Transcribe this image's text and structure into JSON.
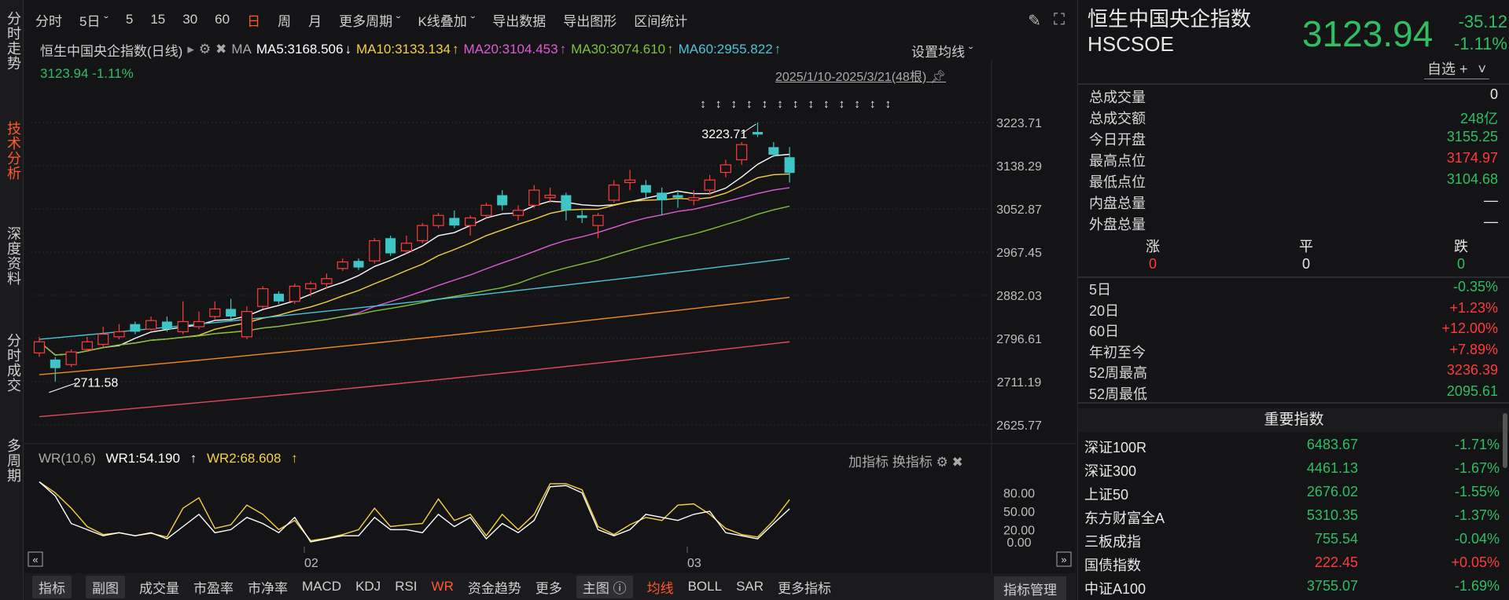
{
  "leftnav": [
    {
      "label": "分时走势",
      "active": false
    },
    {
      "label": "技术分析",
      "active": true
    },
    {
      "label": "深度资料",
      "active": false
    },
    {
      "label": "分时成交",
      "active": false
    },
    {
      "label": "多周期",
      "active": false
    }
  ],
  "toolbar": {
    "items": [
      "分时",
      "5日 ˇ",
      "5",
      "15",
      "30",
      "60",
      "日",
      "周",
      "月",
      "更多周期 ˇ",
      "K线叠加 ˇ",
      "导出数据",
      "导出图形",
      "区间统计"
    ],
    "active_index": 6
  },
  "chart": {
    "name": "恒生中国央企指数(日线)",
    "ma_label": "MA",
    "ma": [
      {
        "text": "MA5:3168.506",
        "arrow": "↓",
        "color": "#ffffff"
      },
      {
        "text": "MA10:3133.134",
        "arrow": "↑",
        "color": "#f5d142"
      },
      {
        "text": "MA20:3104.453",
        "arrow": "↑",
        "color": "#e05ad8"
      },
      {
        "text": "MA30:3074.610",
        "arrow": "↑",
        "color": "#7fc23a"
      },
      {
        "text": "MA60:2955.822",
        "arrow": "↑",
        "color": "#4cc4d8"
      }
    ],
    "set_ma": "设置均线 ˇ",
    "price_line": "3123.94  -1.11%",
    "date_range": "2025/1/10-2025/3/21(48根)",
    "y_ticks": [
      "3223.71",
      "3138.29",
      "3052.87",
      "2967.45",
      "2882.03",
      "2796.61",
      "2711.19",
      "2625.77"
    ],
    "high_label": "3223.71",
    "low_label": "2711.58",
    "x_ticks": [
      "02",
      "03"
    ]
  },
  "wr": {
    "title": "WR(10,6)",
    "wr1": "WR1:54.190",
    "wr1_arrow": "↑",
    "wr2": "WR2:68.608",
    "wr2_arrow": "↑",
    "add_indicator": "加指标",
    "change_indicator": "换指标",
    "y_ticks": [
      "80.00",
      "50.00",
      "20.00",
      "0.00"
    ]
  },
  "bottombar": {
    "items": [
      "指标",
      "副图",
      "成交量",
      "市盈率",
      "市净率",
      "MACD",
      "KDJ",
      "RSI",
      "WR",
      "资金趋势",
      "更多",
      "主图 ⓘ",
      "均线",
      "BOLL",
      "SAR",
      "更多指标"
    ],
    "manage": "指标管理"
  },
  "quote": {
    "name": "恒生中国央企指数",
    "code": "HSCSOE",
    "price": "3123.94",
    "change": "-35.12",
    "change_pct": "-1.11%",
    "fav": "自选 +",
    "stats": [
      {
        "k": "总成交量",
        "v": "0",
        "c": "white"
      },
      {
        "k": "总成交额",
        "v": "248亿",
        "c": "green"
      },
      {
        "k": "今日开盘",
        "v": "3155.25",
        "c": "green"
      },
      {
        "k": "最高点位",
        "v": "3174.97",
        "c": "red"
      },
      {
        "k": "最低点位",
        "v": "3104.68",
        "c": "green"
      },
      {
        "k": "内盘总量",
        "v": "—",
        "c": "white"
      },
      {
        "k": "外盘总量",
        "v": "—",
        "c": "white"
      }
    ],
    "breadth_labels": [
      "涨",
      "平",
      "跌"
    ],
    "breadth_values": [
      "0",
      "0",
      "0"
    ],
    "perf": [
      {
        "k": "5日",
        "v": "-0.35%",
        "c": "green"
      },
      {
        "k": "20日",
        "v": "+1.23%",
        "c": "red"
      },
      {
        "k": "60日",
        "v": "+12.00%",
        "c": "red"
      },
      {
        "k": "年初至今",
        "v": "+7.89%",
        "c": "red"
      },
      {
        "k": "52周最高",
        "v": "3236.39",
        "c": "red"
      },
      {
        "k": "52周最低",
        "v": "2095.61",
        "c": "green"
      }
    ],
    "important_title": "重要指数",
    "indices": [
      {
        "n": "深证100R",
        "p": "6483.67",
        "c": "-1.71%",
        "color": "green"
      },
      {
        "n": "深证300",
        "p": "4461.13",
        "c": "-1.67%",
        "color": "green"
      },
      {
        "n": "上证50",
        "p": "2676.02",
        "c": "-1.55%",
        "color": "green"
      },
      {
        "n": "东方财富全A",
        "p": "5310.35",
        "c": "-1.37%",
        "color": "green"
      },
      {
        "n": "三板成指",
        "p": "755.54",
        "c": "-0.04%",
        "color": "green"
      },
      {
        "n": "国债指数",
        "p": "222.45",
        "c": "+0.05%",
        "color": "red"
      },
      {
        "n": "中证A100",
        "p": "3755.07",
        "c": "-1.69%",
        "color": "green"
      }
    ]
  },
  "chart_data": {
    "type": "candlestick",
    "ylim": [
      2625.77,
      3240
    ],
    "candles": [
      [
        2768,
        2790,
        2800,
        2760
      ],
      [
        2755,
        2738,
        2760,
        2711.58
      ],
      [
        2745,
        2770,
        2775,
        2740
      ],
      [
        2775,
        2790,
        2800,
        2770
      ],
      [
        2785,
        2805,
        2820,
        2780
      ],
      [
        2800,
        2810,
        2825,
        2795
      ],
      [
        2825,
        2810,
        2830,
        2805
      ],
      [
        2815,
        2832,
        2840,
        2812
      ],
      [
        2830,
        2815,
        2840,
        2810
      ],
      [
        2810,
        2830,
        2870,
        2805
      ],
      [
        2820,
        2830,
        2850,
        2815
      ],
      [
        2840,
        2855,
        2870,
        2835
      ],
      [
        2855,
        2840,
        2875,
        2835
      ],
      [
        2800,
        2850,
        2860,
        2795
      ],
      [
        2860,
        2895,
        2900,
        2855
      ],
      [
        2885,
        2870,
        2890,
        2865
      ],
      [
        2870,
        2900,
        2905,
        2865
      ],
      [
        2895,
        2905,
        2910,
        2880
      ],
      [
        2905,
        2915,
        2925,
        2895
      ],
      [
        2935,
        2948,
        2955,
        2930
      ],
      [
        2950,
        2937,
        2955,
        2932
      ],
      [
        2950,
        2990,
        2995,
        2945
      ],
      [
        2995,
        2965,
        3000,
        2960
      ],
      [
        2970,
        2985,
        3000,
        2965
      ],
      [
        2990,
        3020,
        3025,
        2985
      ],
      [
        3020,
        3040,
        3045,
        3015
      ],
      [
        3035,
        3020,
        3050,
        3015
      ],
      [
        3020,
        3035,
        3040,
        3000
      ],
      [
        3040,
        3060,
        3065,
        3035
      ],
      [
        3080,
        3060,
        3090,
        3050
      ],
      [
        3040,
        3050,
        3060,
        3030
      ],
      [
        3060,
        3090,
        3100,
        3055
      ],
      [
        3075,
        3080,
        3095,
        3065
      ],
      [
        3080,
        3050,
        3085,
        3030
      ],
      [
        3040,
        3035,
        3050,
        3025
      ],
      [
        3020,
        3040,
        3045,
        2995
      ],
      [
        3070,
        3100,
        3110,
        3065
      ],
      [
        3105,
        3110,
        3130,
        3090
      ],
      [
        3100,
        3085,
        3110,
        3075
      ],
      [
        3085,
        3070,
        3095,
        3040
      ],
      [
        3080,
        3075,
        3090,
        3055
      ],
      [
        3070,
        3075,
        3090,
        3060
      ],
      [
        3090,
        3110,
        3120,
        3080
      ],
      [
        3125,
        3140,
        3150,
        3115
      ],
      [
        3150,
        3180,
        3185,
        3140
      ],
      [
        3205,
        3200,
        3223.71,
        3195
      ],
      [
        3175,
        3160,
        3185,
        3155
      ],
      [
        3155,
        3124,
        3175,
        3105
      ]
    ],
    "wr1": [
      98,
      75,
      30,
      20,
      10,
      15,
      10,
      15,
      5,
      25,
      45,
      15,
      20,
      40,
      30,
      15,
      40,
      0,
      5,
      10,
      10,
      40,
      20,
      20,
      15,
      45,
      25,
      40,
      5,
      30,
      15,
      35,
      90,
      92,
      80,
      20,
      10,
      20,
      45,
      40,
      35,
      45,
      50,
      15,
      10,
      5,
      30,
      54
    ],
    "wr2": [
      98,
      80,
      55,
      25,
      12,
      15,
      10,
      14,
      8,
      55,
      72,
      22,
      28,
      60,
      45,
      20,
      35,
      2,
      6,
      12,
      20,
      55,
      25,
      28,
      30,
      70,
      35,
      45,
      10,
      45,
      20,
      45,
      95,
      95,
      85,
      25,
      12,
      28,
      40,
      35,
      60,
      62,
      45,
      22,
      12,
      8,
      35,
      69
    ]
  }
}
